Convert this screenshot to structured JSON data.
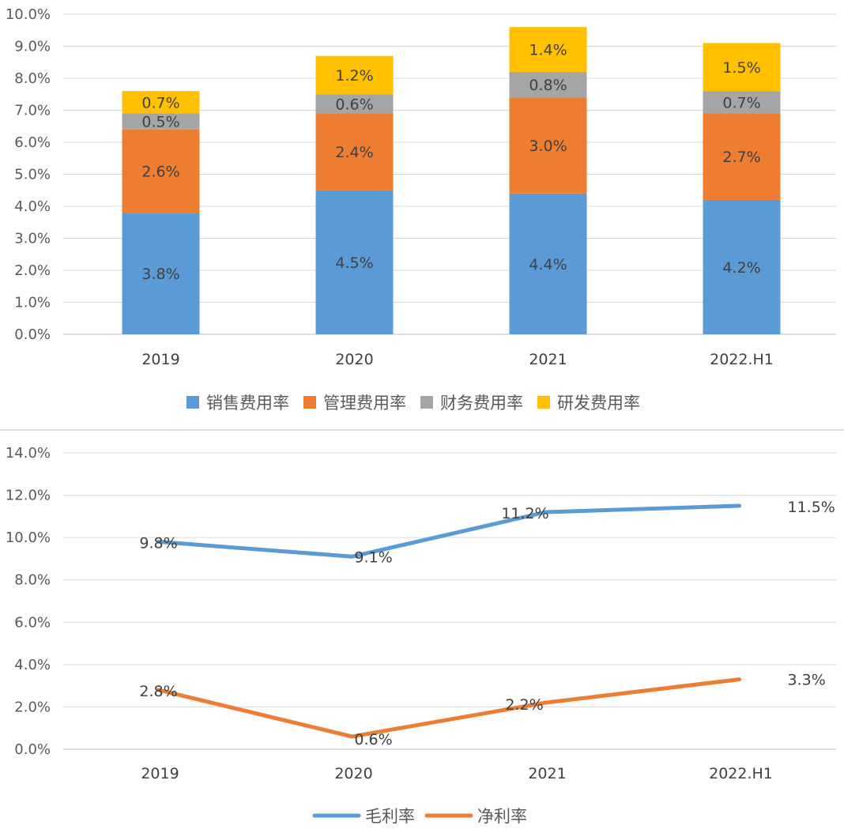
{
  "chart_data": [
    {
      "type": "bar",
      "stacked": true,
      "categories": [
        "2019",
        "2020",
        "2021",
        "2022.H1"
      ],
      "series": [
        {
          "name": "销售费用率",
          "color": "#5b9bd5",
          "values": [
            3.8,
            4.5,
            4.4,
            4.2
          ],
          "labels": [
            "3.8%",
            "4.5%",
            "4.4%",
            "4.2%"
          ]
        },
        {
          "name": "管理费用率",
          "color": "#ed7d31",
          "values": [
            2.6,
            2.4,
            3.0,
            2.7
          ],
          "labels": [
            "2.6%",
            "2.4%",
            "3.0%",
            "2.7%"
          ]
        },
        {
          "name": "财务费用率",
          "color": "#a5a5a5",
          "values": [
            0.5,
            0.6,
            0.8,
            0.7
          ],
          "labels": [
            "0.5%",
            "0.6%",
            "0.8%",
            "0.7%"
          ]
        },
        {
          "name": "研发费用率",
          "color": "#ffc000",
          "values": [
            0.7,
            1.2,
            1.4,
            1.5
          ],
          "labels": [
            "0.7%",
            "1.2%",
            "1.4%",
            "1.5%"
          ]
        }
      ],
      "ylim": [
        0,
        10
      ],
      "yticks": [
        0,
        1,
        2,
        3,
        4,
        5,
        6,
        7,
        8,
        9,
        10
      ],
      "ytick_labels": [
        "0.0%",
        "1.0%",
        "2.0%",
        "3.0%",
        "4.0%",
        "5.0%",
        "6.0%",
        "7.0%",
        "8.0%",
        "9.0%",
        "10.0%"
      ],
      "grid": true,
      "legend": "bottom"
    },
    {
      "type": "line",
      "categories": [
        "2019",
        "2020",
        "2021",
        "2022.H1"
      ],
      "series": [
        {
          "name": "毛利率",
          "color": "#5b9bd5",
          "values": [
            9.8,
            9.1,
            11.2,
            11.5
          ],
          "labels": [
            "9.8%",
            "9.1%",
            "11.2%",
            "11.5%"
          ]
        },
        {
          "name": "净利率",
          "color": "#ed7d31",
          "values": [
            2.8,
            0.6,
            2.2,
            3.3
          ],
          "labels": [
            "2.8%",
            "0.6%",
            "2.2%",
            "3.3%"
          ]
        }
      ],
      "ylim": [
        0,
        14
      ],
      "yticks": [
        0,
        2,
        4,
        6,
        8,
        10,
        12,
        14
      ],
      "ytick_labels": [
        "0.0%",
        "2.0%",
        "4.0%",
        "6.0%",
        "8.0%",
        "10.0%",
        "12.0%",
        "14.0%"
      ],
      "grid": true,
      "legend": "bottom"
    }
  ]
}
